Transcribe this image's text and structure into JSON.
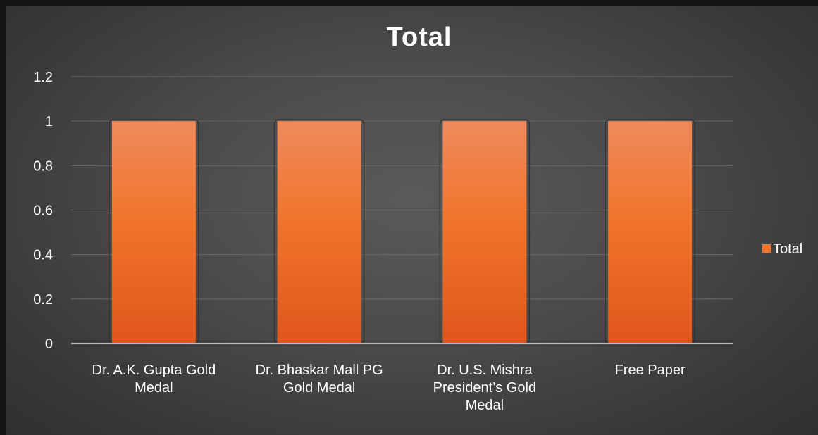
{
  "chart_data": {
    "type": "bar",
    "title": "Total",
    "categories": [
      "Dr. A.K. Gupta Gold Medal",
      "Dr. Bhaskar Mall PG Gold Medal",
      "Dr. U.S. Mishra President’s Gold Medal",
      "Free Paper"
    ],
    "category_label_lines": [
      [
        "Dr. A.K. Gupta Gold",
        "Medal"
      ],
      [
        "Dr. Bhaskar Mall PG",
        "Gold Medal"
      ],
      [
        "Dr. U.S. Mishra",
        "President’s Gold",
        "Medal"
      ],
      [
        "Free Paper"
      ]
    ],
    "series": [
      {
        "name": "Total",
        "values": [
          1,
          1,
          1,
          1
        ]
      }
    ],
    "ylim": [
      0,
      1.2
    ],
    "yticks": [
      "0",
      "0.2",
      "0.4",
      "0.6",
      "0.8",
      "1",
      "1.2"
    ],
    "xlabel": "",
    "ylabel": "",
    "grid": true,
    "legend_position": "right",
    "colors": {
      "bar_top": "#ef8a5c",
      "bar_mid": "#f0742c",
      "bar_bottom": "#e0561c",
      "gridline": "#6a6a6a",
      "axis": "#bdbdbd",
      "text": "#ffffff"
    }
  }
}
